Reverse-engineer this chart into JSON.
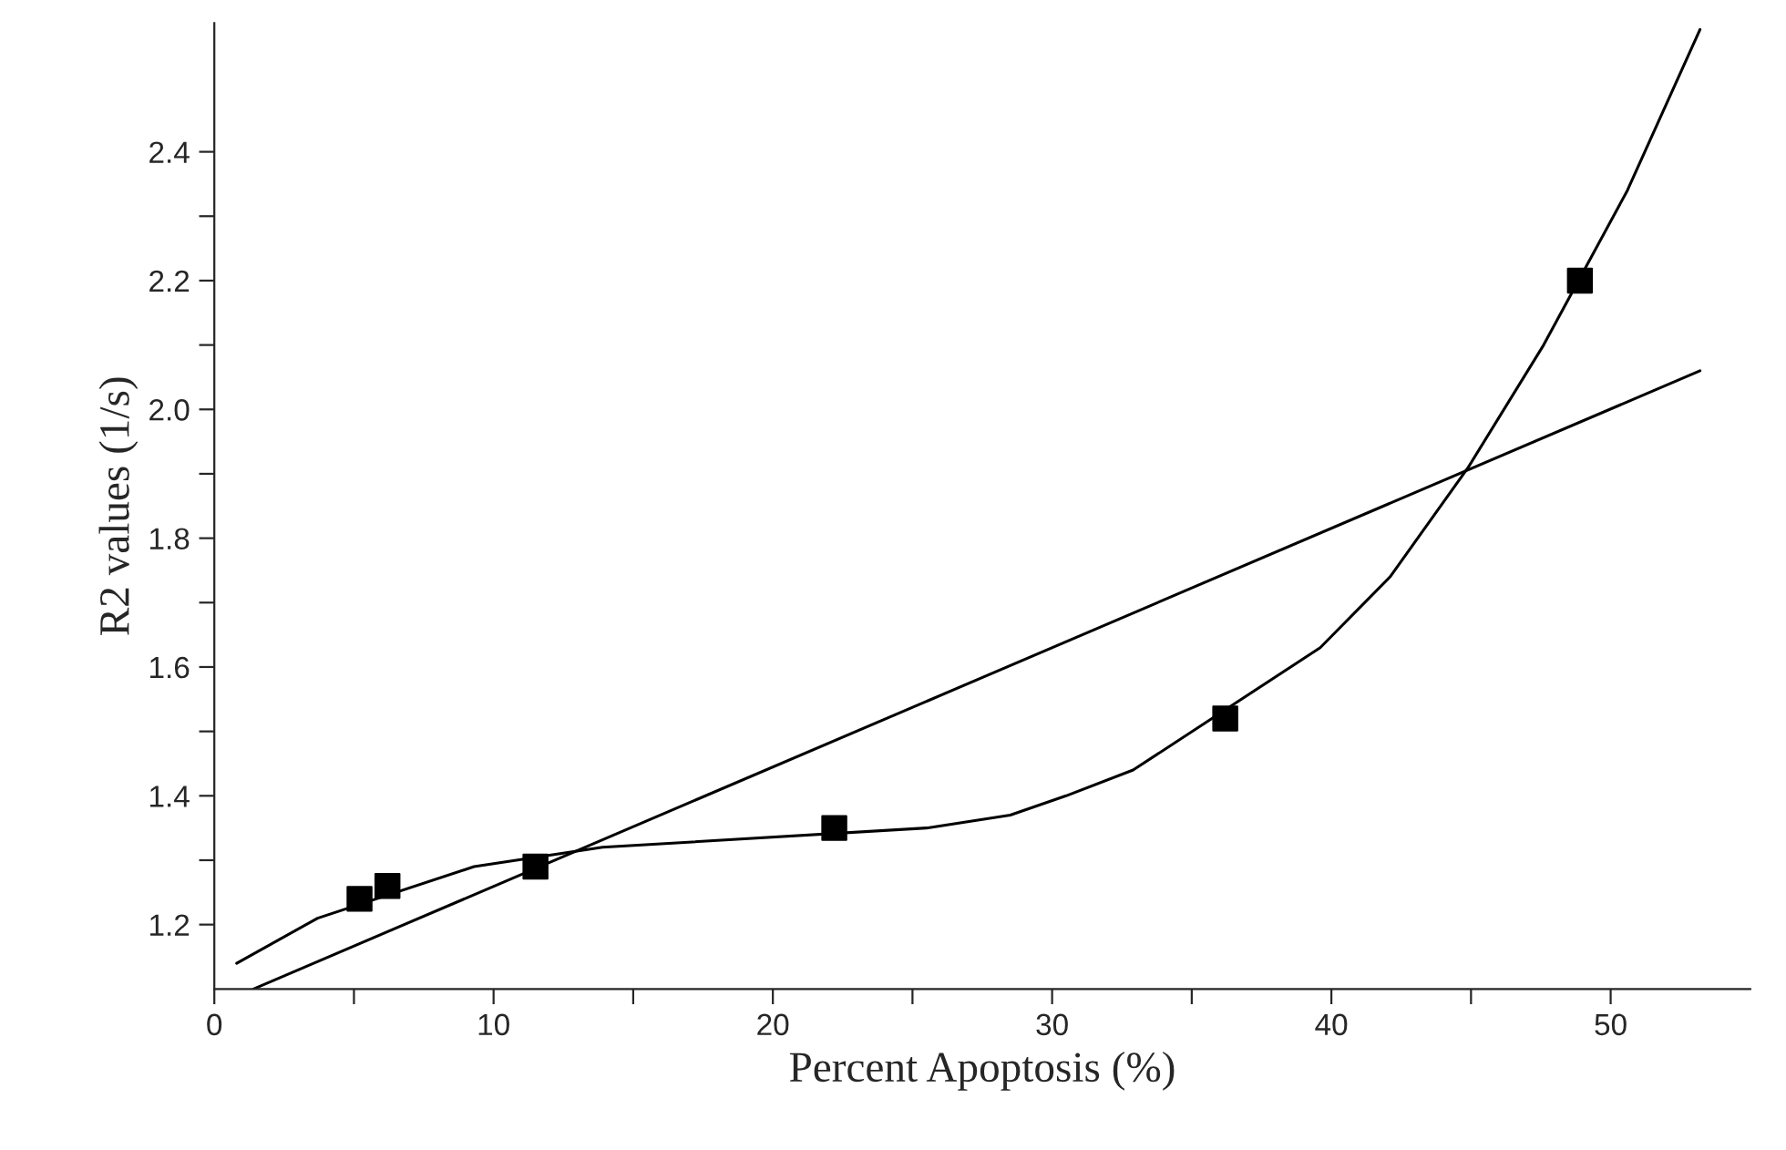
{
  "chart_data": {
    "type": "scatter",
    "xlabel": "Percent Apoptosis (%)",
    "ylabel": "R2 values (1/s)",
    "xlim": [
      0,
      55
    ],
    "ylim": [
      1.1,
      2.6
    ],
    "xticks": [
      0,
      {
        "value": 5,
        "label": null
      },
      10,
      {
        "value": 15,
        "label": null
      },
      20,
      {
        "value": 25,
        "label": null
      },
      30,
      {
        "value": 35,
        "label": null
      },
      40,
      {
        "value": 45,
        "label": null
      },
      50
    ],
    "yticks": [
      1.2,
      {
        "value": 1.3,
        "label": null
      },
      1.4,
      {
        "value": 1.5,
        "label": null
      },
      1.6,
      {
        "value": 1.7,
        "label": null
      },
      1.8,
      {
        "value": 1.9,
        "label": null
      },
      {
        "value": 2.0,
        "label": "2.0"
      },
      {
        "value": 2.1,
        "label": null
      },
      2.2,
      {
        "value": 2.3,
        "label": null
      },
      2.4
    ],
    "grid": false,
    "legend": false,
    "series": [
      {
        "marker": "square",
        "color": "#000000",
        "x": [
          5.2,
          6.2,
          11.5,
          22.2,
          36.2,
          48.9
        ],
        "values": [
          1.24,
          1.26,
          1.29,
          1.35,
          1.52,
          2.2
        ]
      },
      {
        "type": "line",
        "marker": "none",
        "line_style": "solid",
        "color": "#000000",
        "x": [
          0.8,
          3.7,
          9.3,
          13.9,
          25.5,
          28.5,
          30.5,
          32.9,
          39.6,
          42.1,
          44.9,
          47.6,
          50.6,
          53.2
        ],
        "values": [
          1.14,
          1.21,
          1.29,
          1.32,
          1.35,
          1.37,
          1.4,
          1.44,
          1.63,
          1.74,
          1.91,
          2.1,
          2.34,
          2.59
        ]
      },
      {
        "type": "line",
        "marker": "none",
        "line_style": "solid",
        "color": "#000000",
        "x": [
          1.4,
          53.2
        ],
        "values": [
          1.1,
          2.06
        ]
      }
    ]
  }
}
